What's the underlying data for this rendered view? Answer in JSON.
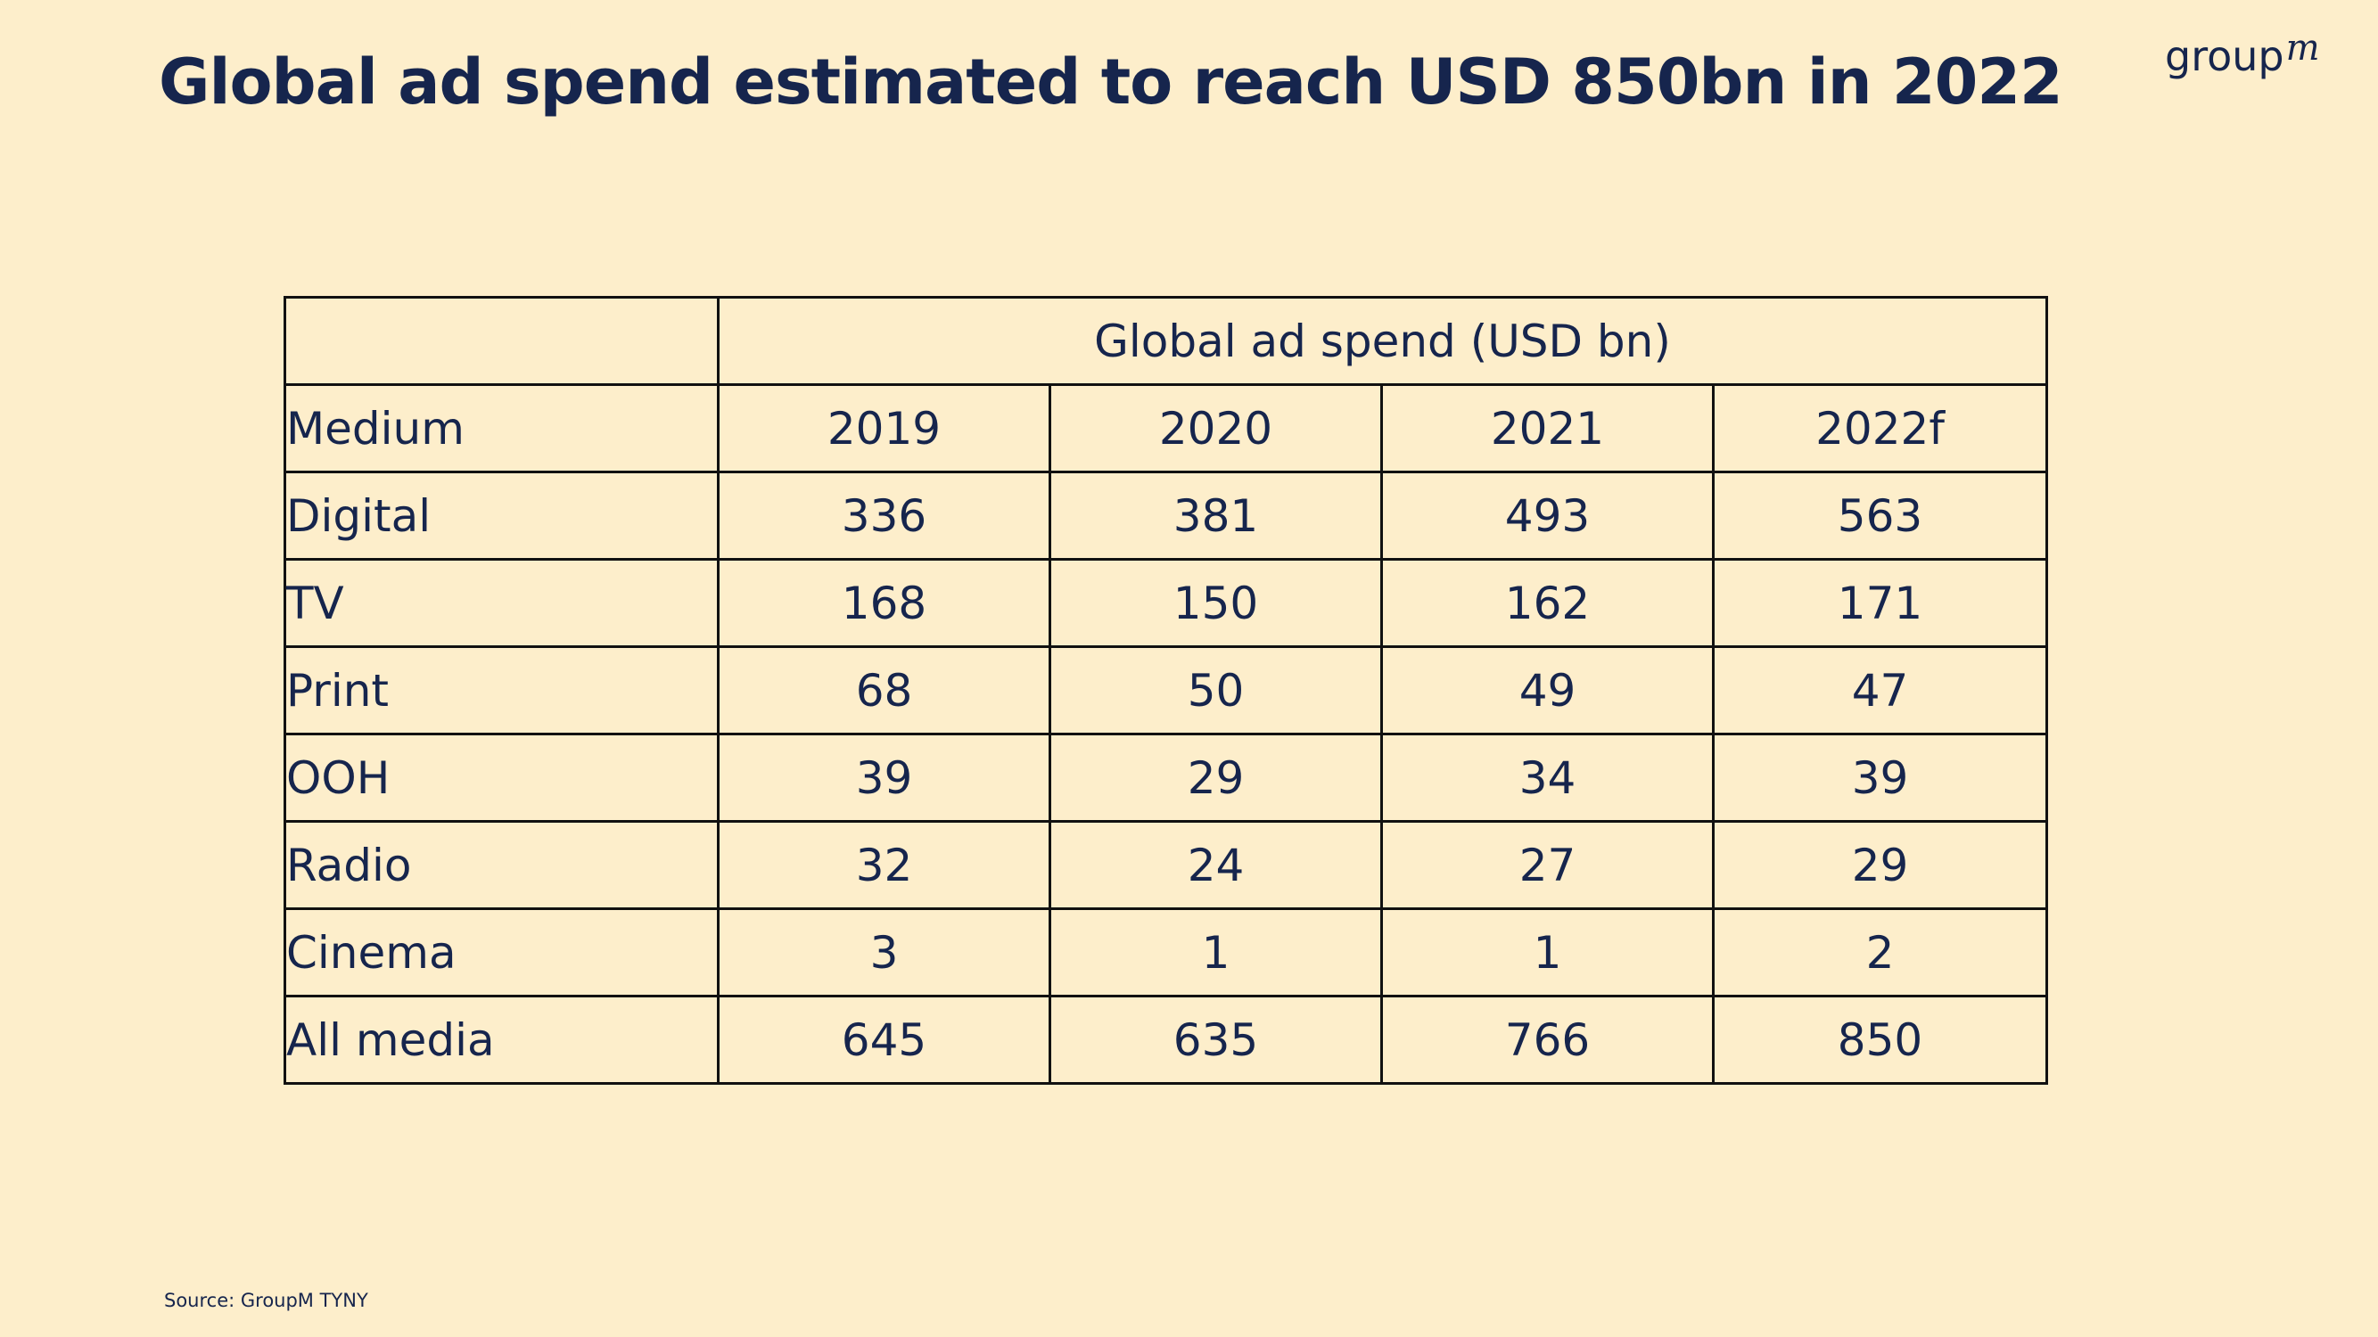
{
  "title": "Global ad spend estimated to reach USD 850bn in 2022",
  "logo": {
    "main": "group",
    "sup": "m"
  },
  "source": "Source: GroupM TYNY",
  "chart_data": {
    "type": "table",
    "title": "Global ad spend estimated to reach USD 850bn in 2022",
    "group_header": "Global ad spend (USD bn)",
    "columns": [
      "Medium",
      "2019",
      "2020",
      "2021",
      "2022f"
    ],
    "rows": [
      {
        "medium": "Digital",
        "values": [
          "336",
          "381",
          "493",
          "563"
        ]
      },
      {
        "medium": "TV",
        "values": [
          "168",
          "150",
          "162",
          "171"
        ]
      },
      {
        "medium": "Print",
        "values": [
          "68",
          "50",
          "49",
          "47"
        ]
      },
      {
        "medium": "OOH",
        "values": [
          "39",
          "29",
          "34",
          "39"
        ]
      },
      {
        "medium": "Radio",
        "values": [
          "32",
          "24",
          "27",
          "29"
        ]
      },
      {
        "medium": "Cinema",
        "values": [
          "3",
          "1",
          "1",
          "2"
        ]
      },
      {
        "medium": "All media",
        "values": [
          "645",
          "635",
          "766",
          "850"
        ]
      }
    ]
  }
}
